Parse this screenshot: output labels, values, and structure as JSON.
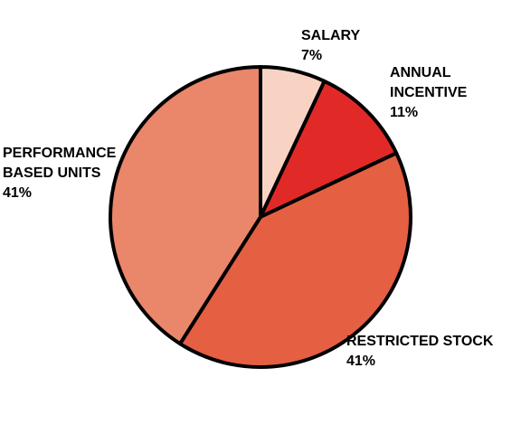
{
  "chart_data": {
    "type": "pie",
    "title": "",
    "slices": [
      {
        "label_lines": [
          "SALARY"
        ],
        "label": "SALARY",
        "value": 7,
        "value_text": "7%",
        "color": "#f8d3c3"
      },
      {
        "label_lines": [
          "ANNUAL",
          "INCENTIVE"
        ],
        "label": "ANNUAL INCENTIVE",
        "value": 11,
        "value_text": "11%",
        "color": "#e12a28"
      },
      {
        "label_lines": [
          "RESTRICTED STOCK"
        ],
        "label": "RESTRICTED STOCK",
        "value": 41,
        "value_text": "41%",
        "color": "#e55f43"
      },
      {
        "label_lines": [
          "PERFORMANCE",
          "BASED UNITS"
        ],
        "label": "PERFORMANCE BASED UNITS",
        "value": 41,
        "value_text": "41%",
        "color": "#ea866a"
      }
    ],
    "start": "top",
    "direction": "clockwise",
    "outline_color": "#000000",
    "legend": "none"
  }
}
